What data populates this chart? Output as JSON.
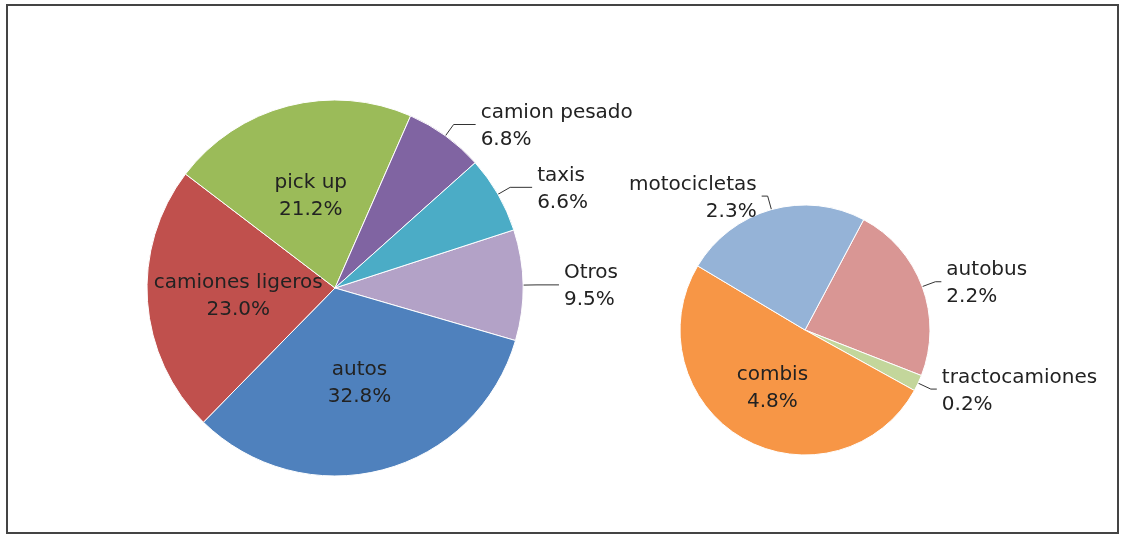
{
  "chart_data": [
    {
      "type": "pie",
      "categories": [
        "Otros",
        "autos",
        "camiones ligeros",
        "pick up",
        "camion pesado",
        "taxis"
      ],
      "values": [
        9.5,
        32.8,
        23.0,
        21.2,
        6.8,
        6.6
      ],
      "value_labels": [
        "9.5%",
        "32.8%",
        "23.0%",
        "21.2%",
        "6.8%",
        "6.6%"
      ],
      "colors": [
        "#b3a2c7",
        "#4f81bd",
        "#c0504d",
        "#9bbb59",
        "#8064a2",
        "#4bacc6"
      ],
      "legend": false
    },
    {
      "type": "pie",
      "categories": [
        "autobus",
        "tractocamiones",
        "combis",
        "motocicletas"
      ],
      "values": [
        2.2,
        0.2,
        4.8,
        2.3
      ],
      "value_labels": [
        "2.2%",
        "0.2%",
        "4.8%",
        "2.3%"
      ],
      "colors": [
        "#d99694",
        "#c3d69b",
        "#f79646",
        "#95b3d7"
      ],
      "legend": false
    }
  ]
}
